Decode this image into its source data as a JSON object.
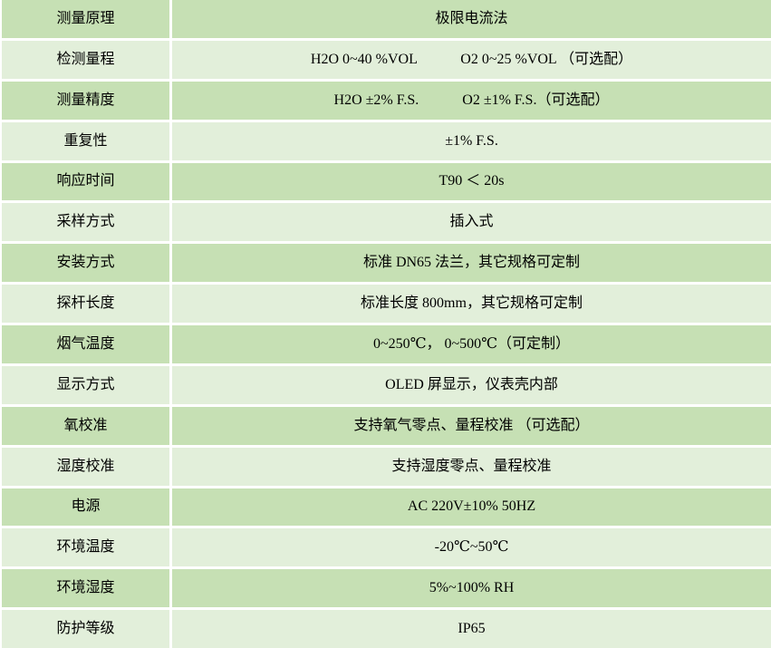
{
  "table": {
    "rows": [
      {
        "label": "测量原理",
        "value": "极限电流法"
      },
      {
        "label": "检测量程",
        "value": "H2O 0~40 %VOL　　　O2 0~25 %VOL （可选配）"
      },
      {
        "label": "测量精度",
        "value": "H2O ±2% F.S.　　　O2 ±1% F.S.（可选配）"
      },
      {
        "label": "重复性",
        "value": "±1% F.S."
      },
      {
        "label": "响应时间",
        "value": "T90 ＜ 20s"
      },
      {
        "label": "采样方式",
        "value": "插入式"
      },
      {
        "label": "安装方式",
        "value": "标准 DN65 法兰，其它规格可定制"
      },
      {
        "label": "探杆长度",
        "value": "标准长度 800mm，其它规格可定制"
      },
      {
        "label": "烟气温度",
        "value": "0~250℃， 0~500℃（可定制）"
      },
      {
        "label": "显示方式",
        "value": "OLED 屏显示，仪表壳内部"
      },
      {
        "label": "氧校准",
        "value": "支持氧气零点、量程校准 （可选配）"
      },
      {
        "label": "湿度校准",
        "value": "支持湿度零点、量程校准"
      },
      {
        "label": "电源",
        "value": "AC 220V±10% 50HZ"
      },
      {
        "label": "环境温度",
        "value": "-20℃~50℃"
      },
      {
        "label": "环境湿度",
        "value": "5%~100% RH"
      },
      {
        "label": "防护等级",
        "value": "IP65"
      }
    ]
  },
  "colors": {
    "row_dark": "#c6e0b4",
    "row_light": "#e2efda",
    "divider": "#ffffff",
    "text": "#000000"
  }
}
